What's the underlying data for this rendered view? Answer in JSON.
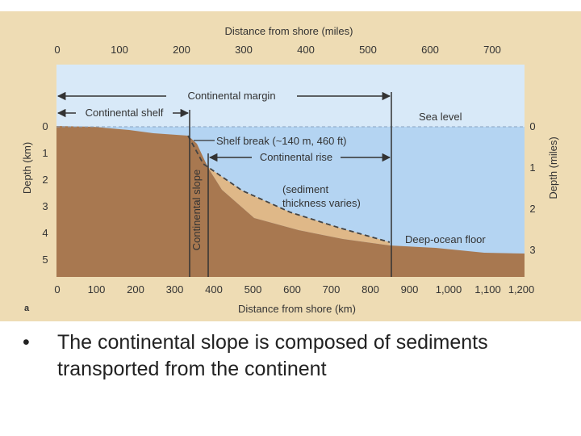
{
  "figure": {
    "top_axis_title": "Distance from shore (miles)",
    "top_ticks": [
      "0",
      "100",
      "200",
      "300",
      "400",
      "500",
      "600",
      "700"
    ],
    "bottom_axis_title": "Distance from shore (km)",
    "bottom_ticks": [
      "0",
      "100",
      "200",
      "300",
      "400",
      "500",
      "600",
      "700",
      "800",
      "900",
      "1,000",
      "1,100",
      "1,200"
    ],
    "left_axis_title": "Depth (km)",
    "left_ticks": [
      "0",
      "1",
      "2",
      "3",
      "4",
      "5"
    ],
    "right_axis_title": "Depth (miles)",
    "right_ticks": [
      "0",
      "1",
      "2",
      "3"
    ],
    "panel_label": "a",
    "labels": {
      "continental_margin": "Continental margin",
      "continental_shelf": "Continental shelf",
      "sea_level": "Sea level",
      "shelf_break": "Shelf break (~140 m, 460 ft)",
      "continental_rise": "Continental rise",
      "sediment_line1": "(sediment",
      "sediment_line2": "thickness varies)",
      "continental_slope": "Continental slope",
      "deep_ocean_floor": "Deep-ocean floor"
    },
    "colors": {
      "frame": "#eedcb4",
      "air": "#d8e9f8",
      "water": "#b4d4f2",
      "crust": "#a87850",
      "sediment": "#dfb888"
    }
  },
  "caption": {
    "bullet": "•",
    "text": "The continental slope is composed of sediments transported from the continent"
  }
}
